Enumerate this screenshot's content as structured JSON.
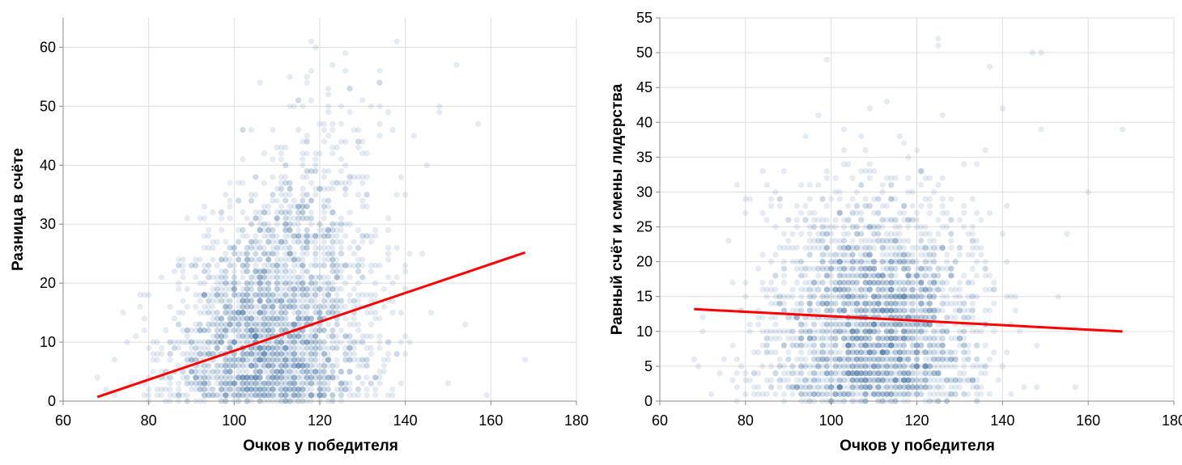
{
  "chart_data": [
    {
      "type": "scatter",
      "title": "",
      "xlabel": "Очков у победителя",
      "ylabel": "Разница в счёте",
      "xlim": [
        60,
        180
      ],
      "ylim": [
        0,
        65
      ],
      "xticks": [
        60,
        80,
        100,
        120,
        140,
        160,
        180
      ],
      "yticks": [
        0,
        10,
        20,
        30,
        40,
        50,
        60
      ],
      "grid": true,
      "point_color": "#4c78a8",
      "point_opacity": 0.15,
      "trend_line": {
        "color": "#ff0000",
        "start": [
          68,
          0.7
        ],
        "end": [
          168,
          25.2
        ]
      },
      "point_cloud": {
        "x_mean": 110,
        "x_sd": 12,
        "x_range": [
          68,
          168
        ],
        "y_mean_at_x": "0.25*x-16",
        "y_range": [
          0,
          61
        ]
      },
      "outliers": [
        [
          68,
          4
        ],
        [
          70,
          2
        ],
        [
          76,
          3
        ],
        [
          78,
          16
        ],
        [
          80,
          9
        ],
        [
          138,
          61
        ],
        [
          152,
          57
        ],
        [
          157,
          47
        ],
        [
          159,
          1
        ],
        [
          168,
          7
        ],
        [
          148,
          49
        ],
        [
          134,
          56
        ],
        [
          130,
          51
        ],
        [
          127,
          53
        ],
        [
          145,
          40
        ],
        [
          150,
          3
        ],
        [
          154,
          13
        ],
        [
          142,
          45
        ]
      ]
    },
    {
      "type": "scatter",
      "title": "",
      "xlabel": "Очков у победителя",
      "ylabel": "Равный счёт и смены лидерства",
      "xlim": [
        60,
        180
      ],
      "ylim": [
        0,
        55
      ],
      "xticks": [
        60,
        80,
        100,
        120,
        140,
        160,
        180
      ],
      "yticks": [
        0,
        5,
        10,
        15,
        20,
        25,
        30,
        35,
        40,
        45,
        50,
        55
      ],
      "grid": true,
      "point_color": "#4c78a8",
      "point_opacity": 0.15,
      "trend_line": {
        "color": "#ff0000",
        "start": [
          68,
          13.2
        ],
        "end": [
          168,
          10
        ]
      },
      "point_cloud": {
        "x_mean": 110,
        "x_sd": 12,
        "x_range": [
          68,
          168
        ],
        "y_mean": 12,
        "y_range": [
          0,
          52
        ]
      },
      "outliers": [
        [
          68,
          6
        ],
        [
          70,
          10
        ],
        [
          76,
          23
        ],
        [
          78,
          31
        ],
        [
          79,
          13
        ],
        [
          80,
          3
        ],
        [
          81,
          29
        ],
        [
          99,
          49
        ],
        [
          125,
          52
        ],
        [
          147,
          50
        ],
        [
          149,
          50
        ],
        [
          149,
          39
        ],
        [
          168,
          39
        ],
        [
          160,
          30
        ],
        [
          157,
          2
        ],
        [
          153,
          15
        ],
        [
          155,
          24
        ],
        [
          137,
          48
        ],
        [
          140,
          42
        ]
      ]
    }
  ]
}
